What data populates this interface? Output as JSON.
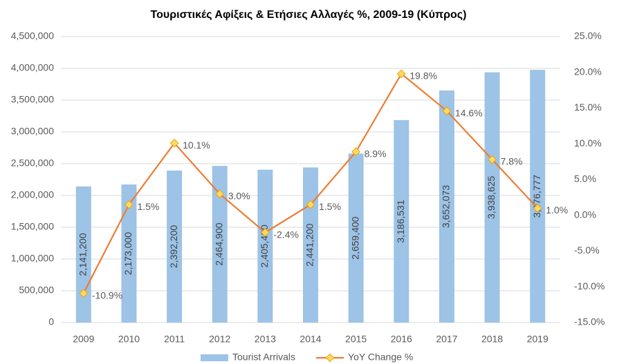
{
  "chart_data": {
    "type": "combo",
    "title": "Τουριστικές Αφίξεις & Ετήσιες Αλλαγές %, 2009-19 (Κύπρος)",
    "categories": [
      "2009",
      "2010",
      "2011",
      "2012",
      "2013",
      "2014",
      "2015",
      "2016",
      "2017",
      "2018",
      "2019"
    ],
    "series": [
      {
        "name": "Tourist Arrivals",
        "type": "bar",
        "color": "#9dc3e6",
        "values": [
          2141200,
          2173000,
          2392200,
          2464900,
          2405400,
          2441200,
          2659400,
          3186531,
          3652073,
          3938625,
          3976777
        ],
        "value_labels": [
          "2,141,200",
          "2,173,000",
          "2,392,200",
          "2,464,900",
          "2,405,400",
          "2,441,200",
          "2,659,400",
          "3,186,531",
          "3,652,073",
          "3,938,625",
          "3,976,777"
        ]
      },
      {
        "name": "YoY Change %",
        "type": "line",
        "axis": "y2",
        "color": "#ed7d31",
        "marker_color": "#ffd966",
        "values": [
          -10.9,
          1.5,
          10.1,
          3.0,
          -2.4,
          1.5,
          8.9,
          19.8,
          14.6,
          7.8,
          1.0
        ],
        "value_labels": [
          "-10.9%",
          "1.5%",
          "10.1%",
          "3.0%",
          "-2.4%",
          "1.5%",
          "8.9%",
          "19.8%",
          "14.6%",
          "7.8%",
          "1.0%"
        ]
      }
    ],
    "ylim": [
      0,
      4500000
    ],
    "yticks": [
      0,
      {
        "value": 500000,
        "label": "500,000"
      },
      {
        "value": 1000000,
        "label": "1,000,000"
      },
      {
        "value": 1500000,
        "label": "1,500,000"
      },
      {
        "value": 2000000,
        "label": "2,000,000"
      },
      {
        "value": 2500000,
        "label": "2,500,000"
      },
      {
        "value": 3000000,
        "label": "3,000,000"
      },
      {
        "value": 3500000,
        "label": "3,500,000"
      },
      {
        "value": 4000000,
        "label": "4,000,000"
      },
      {
        "value": 4500000,
        "label": "4,500,000"
      }
    ],
    "y2lim": [
      -15,
      25
    ],
    "y2ticks": [
      {
        "value": -15,
        "label": "-15.0%"
      },
      {
        "value": -10,
        "label": "-10.0%"
      },
      {
        "value": -5,
        "label": "-5.0%"
      },
      {
        "value": 0,
        "label": "0.0%"
      },
      {
        "value": 5,
        "label": "5.0%"
      },
      {
        "value": 10,
        "label": "10.0%"
      },
      {
        "value": 15,
        "label": "15.0%"
      },
      {
        "value": 20,
        "label": "20.0%"
      },
      {
        "value": 25,
        "label": "25.0%"
      }
    ],
    "grid": true,
    "legend": "bottom"
  }
}
